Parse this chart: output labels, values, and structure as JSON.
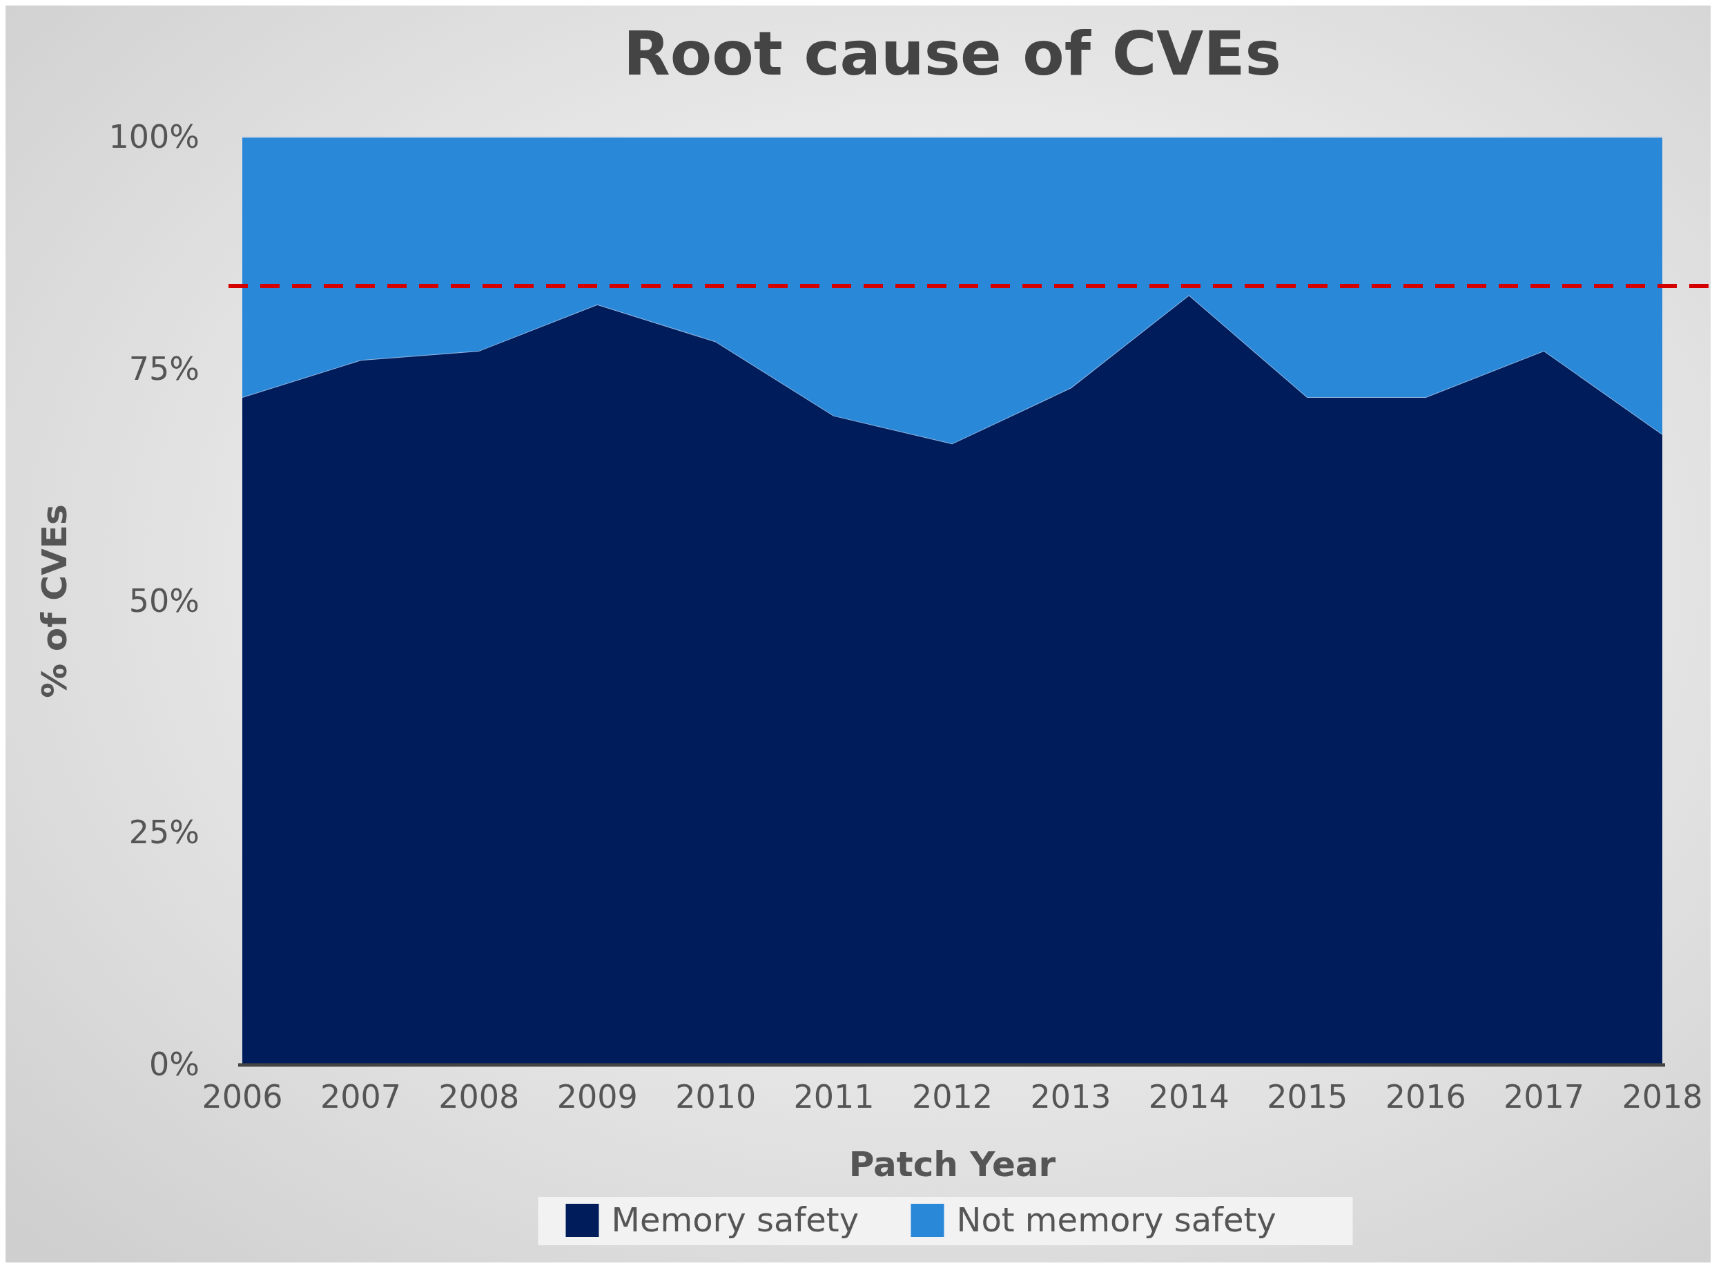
{
  "chart_data": {
    "type": "area",
    "title": "Root cause of CVEs",
    "xlabel": "Patch Year",
    "ylabel": "% of CVEs",
    "x": [
      2006,
      2007,
      2008,
      2009,
      2010,
      2011,
      2012,
      2013,
      2014,
      2015,
      2016,
      2017,
      2018
    ],
    "xlim": [
      2006,
      2018
    ],
    "xticks": [
      2006,
      2007,
      2008,
      2009,
      2010,
      2011,
      2012,
      2013,
      2014,
      2015,
      2016,
      2017,
      2018
    ],
    "ylim": [
      0,
      100
    ],
    "yticks": [
      {
        "value": 0,
        "label": "0%"
      },
      {
        "value": 25,
        "label": "25%"
      },
      {
        "value": 50,
        "label": "50%"
      },
      {
        "value": 75,
        "label": "75%"
      },
      {
        "value": 100,
        "label": "100%"
      }
    ],
    "stacked": true,
    "series": [
      {
        "name": "Memory safety",
        "color": "#001c5a",
        "values": [
          72,
          76,
          77,
          82,
          78,
          70,
          67,
          73,
          83,
          72,
          72,
          77,
          68
        ]
      },
      {
        "name": "Not memory safety",
        "color": "#2a88d8",
        "values": [
          28,
          24,
          23,
          18,
          22,
          30,
          33,
          27,
          17,
          28,
          28,
          23,
          32
        ]
      }
    ],
    "ref_lines": [
      {
        "axis": "y",
        "value": 84,
        "color": "#d40000",
        "line_style": "dashed"
      }
    ],
    "legend": "bottom"
  }
}
